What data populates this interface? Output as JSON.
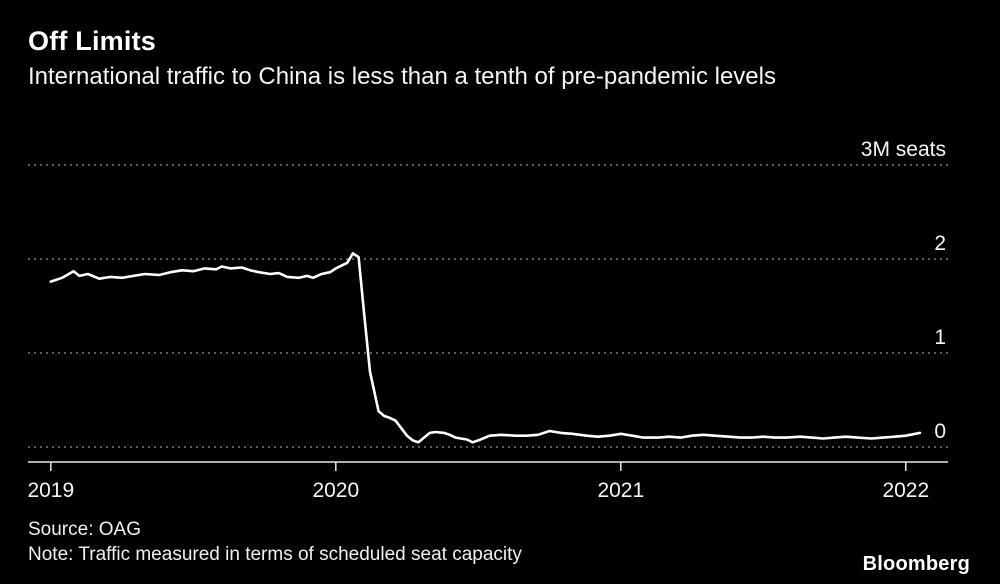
{
  "header": {
    "title": "Off Limits",
    "subtitle": "International traffic to China is less than a tenth of pre-pandemic levels"
  },
  "footer": {
    "source": "Source: OAG",
    "note": "Note: Traffic measured in terms of scheduled seat capacity",
    "brand": "Bloomberg"
  },
  "colors": {
    "background": "#000000",
    "line": "#ffffff",
    "grid": "#b8b8b8",
    "axis": "#e8e8e8",
    "text": "#f5f5f5"
  },
  "chart_data": {
    "type": "line",
    "title": "Off Limits",
    "subtitle": "International traffic to China is less than a tenth of pre-pandemic levels",
    "unit": "millions of scheduled seats",
    "ylim": [
      0,
      3
    ],
    "xlim": [
      2018.92,
      2022.15
    ],
    "grid": "dotted-horizontal",
    "legend": "none",
    "yticks": [
      {
        "value": 3,
        "label": "3M seats"
      },
      {
        "value": 2,
        "label": "2"
      },
      {
        "value": 1,
        "label": "1"
      },
      {
        "value": 0,
        "label": "0"
      }
    ],
    "xticks": [
      {
        "value": 2019,
        "label": "2019"
      },
      {
        "value": 2020,
        "label": "2020"
      },
      {
        "value": 2021,
        "label": "2021"
      },
      {
        "value": 2022,
        "label": "2022"
      }
    ],
    "series": [
      {
        "name": "International scheduled seat capacity to China",
        "x": [
          2019.0,
          2019.04,
          2019.08,
          2019.1,
          2019.13,
          2019.17,
          2019.21,
          2019.25,
          2019.29,
          2019.33,
          2019.38,
          2019.42,
          2019.46,
          2019.5,
          2019.54,
          2019.58,
          2019.6,
          2019.63,
          2019.67,
          2019.7,
          2019.73,
          2019.77,
          2019.8,
          2019.83,
          2019.87,
          2019.9,
          2019.92,
          2019.95,
          2019.98,
          2020.0,
          2020.04,
          2020.06,
          2020.08,
          2020.1,
          2020.12,
          2020.15,
          2020.17,
          2020.19,
          2020.21,
          2020.25,
          2020.27,
          2020.29,
          2020.33,
          2020.35,
          2020.38,
          2020.4,
          2020.42,
          2020.46,
          2020.48,
          2020.5,
          2020.54,
          2020.58,
          2020.63,
          2020.67,
          2020.71,
          2020.75,
          2020.79,
          2020.83,
          2020.88,
          2020.92,
          2020.96,
          2021.0,
          2021.04,
          2021.08,
          2021.13,
          2021.17,
          2021.21,
          2021.25,
          2021.29,
          2021.33,
          2021.38,
          2021.42,
          2021.46,
          2021.5,
          2021.54,
          2021.58,
          2021.63,
          2021.67,
          2021.71,
          2021.75,
          2021.79,
          2021.83,
          2021.88,
          2021.92,
          2021.96,
          2022.0,
          2022.05
        ],
        "y": [
          1.76,
          1.8,
          1.87,
          1.82,
          1.84,
          1.79,
          1.81,
          1.8,
          1.82,
          1.84,
          1.83,
          1.86,
          1.88,
          1.87,
          1.9,
          1.89,
          1.92,
          1.9,
          1.91,
          1.88,
          1.86,
          1.84,
          1.85,
          1.81,
          1.8,
          1.82,
          1.8,
          1.84,
          1.86,
          1.9,
          1.96,
          2.06,
          2.02,
          1.4,
          0.8,
          0.38,
          0.33,
          0.31,
          0.28,
          0.12,
          0.07,
          0.05,
          0.15,
          0.16,
          0.15,
          0.13,
          0.1,
          0.08,
          0.05,
          0.07,
          0.12,
          0.13,
          0.12,
          0.12,
          0.13,
          0.17,
          0.15,
          0.14,
          0.12,
          0.11,
          0.12,
          0.14,
          0.12,
          0.1,
          0.1,
          0.11,
          0.1,
          0.12,
          0.13,
          0.12,
          0.11,
          0.1,
          0.1,
          0.11,
          0.1,
          0.1,
          0.11,
          0.1,
          0.09,
          0.1,
          0.11,
          0.1,
          0.09,
          0.1,
          0.11,
          0.12,
          0.15
        ]
      }
    ]
  }
}
